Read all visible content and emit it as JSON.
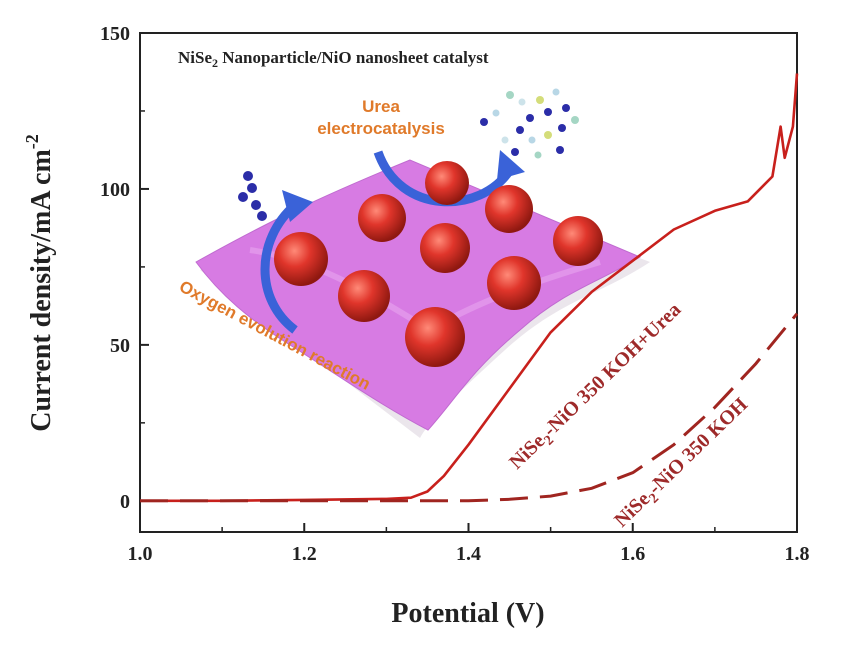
{
  "chart_data": {
    "type": "line",
    "title": "",
    "xlabel": "Potential (V)",
    "ylabel": "Current density/mA cm",
    "ylabel_superscript": "-2",
    "xlim": [
      1.0,
      1.8
    ],
    "ylim": [
      -10,
      150
    ],
    "x_ticks": [
      1.0,
      1.2,
      1.4,
      1.6,
      1.8
    ],
    "x_tick_labels": [
      "1.0",
      "1.2",
      "1.4",
      "1.6",
      "1.8"
    ],
    "y_ticks": [
      0,
      50,
      100,
      150
    ],
    "y_tick_labels": [
      "0",
      "50",
      "100",
      "150"
    ],
    "grid": false,
    "series": [
      {
        "name": "NiSe2-NiO 350 KOH+Urea",
        "label_main": "NiSe",
        "label_sub": "2",
        "label_rest": "-NiO 350 KOH+Urea",
        "color": "#c8201c",
        "style": "solid",
        "x": [
          1.0,
          1.1,
          1.2,
          1.3,
          1.33,
          1.35,
          1.37,
          1.4,
          1.45,
          1.5,
          1.55,
          1.6,
          1.65,
          1.7,
          1.74,
          1.77,
          1.78,
          1.785,
          1.79,
          1.795,
          1.8
        ],
        "y": [
          0,
          0,
          0.3,
          0.6,
          1,
          3,
          8,
          18,
          36,
          54,
          67,
          77,
          87,
          93,
          96,
          104,
          120,
          110,
          115,
          120,
          137
        ]
      },
      {
        "name": "NiSe2-NiO 350 KOH",
        "label_main": "NiSe",
        "label_sub": "2",
        "label_rest": "-NiO 350 KOH",
        "color": "#a02520",
        "style": "dashed",
        "x": [
          1.0,
          1.2,
          1.35,
          1.4,
          1.45,
          1.5,
          1.55,
          1.6,
          1.65,
          1.7,
          1.75,
          1.8
        ],
        "y": [
          0,
          0,
          0,
          0,
          0.5,
          1.5,
          4,
          9,
          18,
          30,
          44,
          60
        ]
      }
    ],
    "annotations": {
      "inset_title_a": "NiSe",
      "inset_title_sub": "2",
      "inset_title_b": " Nanoparticle/NiO nanosheet catalyst",
      "urea_line1": "Urea",
      "urea_line2": "electrocatalysis",
      "oer_label": "Oxygen evolution reaction"
    }
  }
}
